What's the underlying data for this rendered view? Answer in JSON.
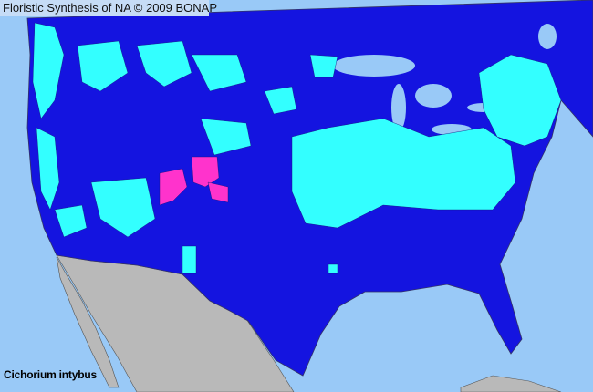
{
  "map": {
    "title": "Floristic Synthesis of NA © 2009 BONAP",
    "species": "Cichorium intybus",
    "colors": {
      "ocean": "#99c9f7",
      "land_county": "#1414e0",
      "present_county": "#33ffff",
      "noxious_county": "#ff33cc",
      "other_country": "#b9b9b9",
      "county_border": "#333366"
    }
  }
}
